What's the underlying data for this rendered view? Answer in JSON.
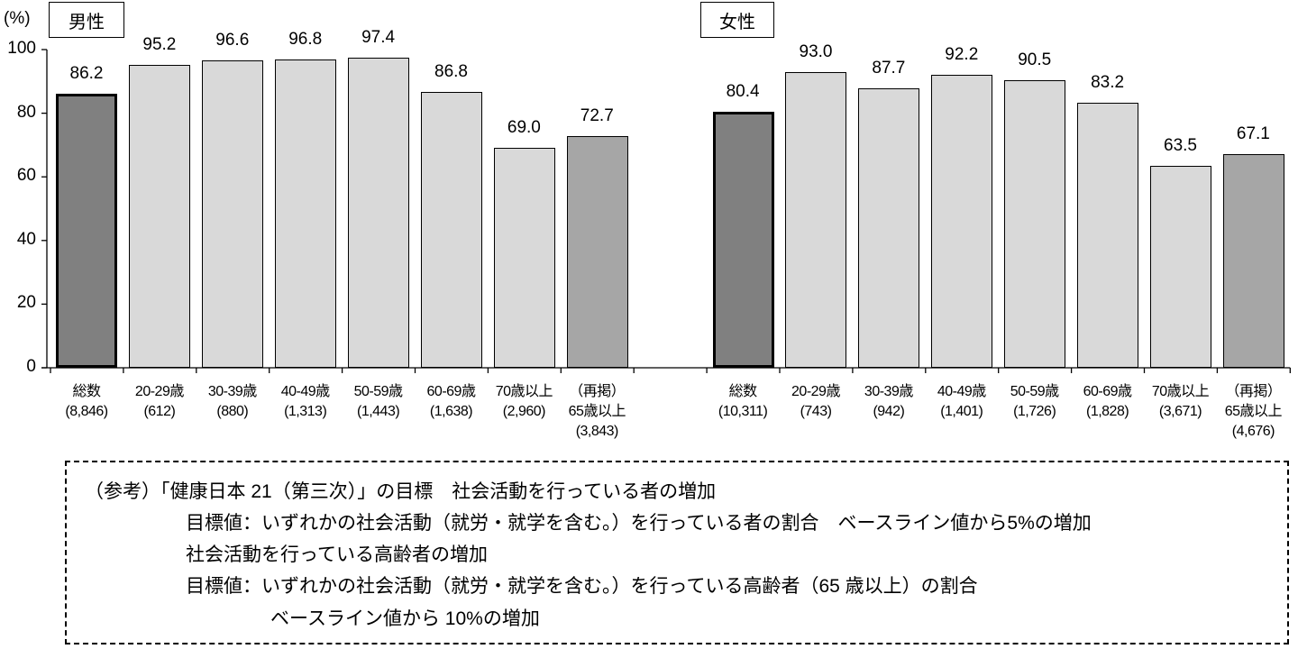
{
  "chart_data": [
    {
      "type": "bar",
      "title": "男性",
      "ylabel": "(%)",
      "ylim": [
        0,
        100
      ],
      "yticks": [
        0,
        20,
        40,
        60,
        80,
        100
      ],
      "grid": false,
      "categories": [
        "総数",
        "20-29歳",
        "30-39歳",
        "40-49歳",
        "50-59歳",
        "60-69歳",
        "70歳以上",
        "（再掲）65歳以上"
      ],
      "sample_sizes": [
        "(8,846)",
        "(612)",
        "(880)",
        "(1,313)",
        "(1,443)",
        "(1,638)",
        "(2,960)",
        "(3,843)"
      ],
      "values": [
        86.2,
        95.2,
        96.6,
        96.8,
        97.4,
        86.8,
        69.0,
        72.7
      ],
      "labels": [
        "86.2",
        "95.2",
        "96.6",
        "96.8",
        "97.4",
        "86.8",
        "69.0",
        "72.7"
      ]
    },
    {
      "type": "bar",
      "title": "女性",
      "ylabel": "(%)",
      "ylim": [
        0,
        100
      ],
      "yticks": [
        0,
        20,
        40,
        60,
        80,
        100
      ],
      "grid": false,
      "categories": [
        "総数",
        "20-29歳",
        "30-39歳",
        "40-49歳",
        "50-59歳",
        "60-69歳",
        "70歳以上",
        "（再掲）65歳以上"
      ],
      "sample_sizes": [
        "(10,311)",
        "(743)",
        "(942)",
        "(1,401)",
        "(1,726)",
        "(1,828)",
        "(3,671)",
        "(4,676)"
      ],
      "values": [
        80.4,
        93.0,
        87.7,
        92.2,
        90.5,
        83.2,
        63.5,
        67.1
      ],
      "labels": [
        "80.4",
        "93.0",
        "87.7",
        "92.2",
        "90.5",
        "83.2",
        "63.5",
        "67.1"
      ]
    }
  ],
  "axis": {
    "unit": "(%)",
    "yticks": [
      "0",
      "20",
      "40",
      "60",
      "80",
      "100"
    ]
  },
  "panels": {
    "male": {
      "label": "男性"
    },
    "female": {
      "label": "女性"
    }
  },
  "colors": {
    "total_bar": "#808080",
    "age_bar": "#d9d9d9",
    "recap_bar": "#a6a6a6",
    "outline": "#000000"
  },
  "note": {
    "lines": [
      "（参考）「健康日本 21（第三次）」の目標　社会活動を行っている者の増加",
      "目標値：いずれかの社会活動（就労・就学を含む。）を行っている者の割合　ベースライン値から5%の増加",
      "社会活動を行っている高齢者の増加",
      "目標値：いずれかの社会活動（就労・就学を含む。）を行っている高齢者（65 歳以上）の割合",
      "ベースライン値から 10%の増加"
    ]
  }
}
